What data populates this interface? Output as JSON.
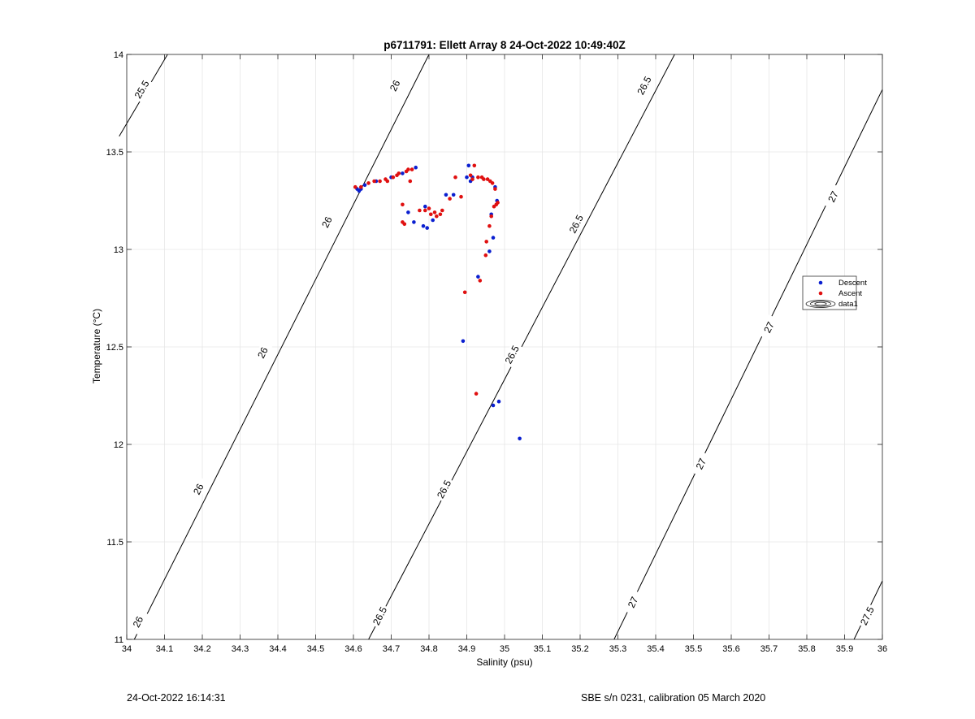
{
  "chart_data": {
    "type": "scatter",
    "title": "p6711791: Ellett Array 8 24-Oct-2022 10:49:40Z",
    "xlabel": "Salinity (psu)",
    "ylabel": "Temperature (°C)",
    "xlim": [
      34,
      36
    ],
    "ylim": [
      11,
      14
    ],
    "xticks": [
      34,
      34.1,
      34.2,
      34.3,
      34.4,
      34.5,
      34.6,
      34.7,
      34.8,
      34.9,
      35,
      35.1,
      35.2,
      35.3,
      35.4,
      35.5,
      35.6,
      35.7,
      35.8,
      35.9,
      36
    ],
    "xtick_labels": [
      "34",
      "34.1",
      "34.2",
      "34.3",
      "34.4",
      "34.5",
      "34.6",
      "34.7",
      "34.8",
      "34.9",
      "35",
      "35.1",
      "35.2",
      "35.3",
      "35.4",
      "35.5",
      "35.6",
      "35.7",
      "35.8",
      "35.9",
      "36"
    ],
    "yticks": [
      11,
      11.5,
      12,
      12.5,
      13,
      13.5,
      14
    ],
    "ytick_labels": [
      "11",
      "11.5",
      "12",
      "12.5",
      "13",
      "13.5",
      "14"
    ],
    "grid": true,
    "legend_position": "right",
    "legend": [
      {
        "label": "Descent",
        "marker": "dot",
        "color": "#0a1fd0"
      },
      {
        "label": "Ascent",
        "marker": "dot",
        "color": "#e01010"
      },
      {
        "label": "data1",
        "marker": "contour",
        "color": "#000000"
      }
    ],
    "contours": [
      {
        "level": 25.5,
        "label": "25.5",
        "points": [
          [
            33.98,
            13.58
          ],
          [
            34.108,
            14.0
          ]
        ],
        "label_positions": [
          [
            34.04,
            13.82
          ]
        ]
      },
      {
        "level": 26,
        "label": "26",
        "points": [
          [
            34.02,
            11.0
          ],
          [
            34.8,
            14.0
          ]
        ],
        "label_positions": [
          [
            34.03,
            11.09
          ],
          [
            34.19,
            11.77
          ],
          [
            34.36,
            12.47
          ],
          [
            34.53,
            13.14
          ],
          [
            34.71,
            13.84
          ]
        ]
      },
      {
        "level": 26.5,
        "label": "26.5",
        "points": [
          [
            34.64,
            11.0
          ],
          [
            35.45,
            14.0
          ]
        ],
        "label_positions": [
          [
            34.67,
            11.12
          ],
          [
            34.84,
            11.77
          ],
          [
            35.02,
            12.46
          ],
          [
            35.19,
            13.13
          ],
          [
            35.37,
            13.84
          ]
        ]
      },
      {
        "level": 27,
        "label": "27",
        "points": [
          [
            35.29,
            11.0
          ],
          [
            36.0,
            13.82
          ]
        ],
        "label_positions": [
          [
            35.34,
            11.19
          ],
          [
            35.52,
            11.9
          ],
          [
            35.7,
            12.6
          ],
          [
            35.87,
            13.27
          ]
        ]
      },
      {
        "level": 27.5,
        "label": "27.5",
        "points": [
          [
            35.925,
            11.0
          ],
          [
            36.0,
            11.3
          ]
        ],
        "label_positions": [
          [
            35.96,
            11.12
          ]
        ]
      }
    ],
    "series": [
      {
        "name": "Descent",
        "color": "#0a1fd0",
        "points": [
          [
            34.61,
            13.31
          ],
          [
            34.615,
            13.3
          ],
          [
            34.62,
            13.31
          ],
          [
            34.63,
            13.33
          ],
          [
            34.66,
            13.35
          ],
          [
            34.7,
            13.37
          ],
          [
            34.73,
            13.39
          ],
          [
            34.745,
            13.19
          ],
          [
            34.76,
            13.14
          ],
          [
            34.765,
            13.42
          ],
          [
            34.785,
            13.12
          ],
          [
            34.79,
            13.22
          ],
          [
            34.795,
            13.11
          ],
          [
            34.81,
            13.15
          ],
          [
            34.845,
            13.28
          ],
          [
            34.865,
            13.28
          ],
          [
            34.89,
            12.53
          ],
          [
            34.9,
            13.37
          ],
          [
            34.905,
            13.43
          ],
          [
            34.91,
            13.35
          ],
          [
            34.915,
            13.37
          ],
          [
            34.93,
            12.86
          ],
          [
            34.96,
            12.99
          ],
          [
            34.965,
            13.18
          ],
          [
            34.97,
            13.06
          ],
          [
            34.97,
            12.2
          ],
          [
            34.975,
            13.32
          ],
          [
            34.98,
            13.25
          ],
          [
            34.985,
            12.22
          ],
          [
            35.04,
            12.03
          ]
        ]
      },
      {
        "name": "Ascent",
        "color": "#e01010",
        "points": [
          [
            34.605,
            13.32
          ],
          [
            34.62,
            13.32
          ],
          [
            34.64,
            13.34
          ],
          [
            34.655,
            13.35
          ],
          [
            34.67,
            13.35
          ],
          [
            34.685,
            13.36
          ],
          [
            34.69,
            13.35
          ],
          [
            34.705,
            13.37
          ],
          [
            34.715,
            13.38
          ],
          [
            34.72,
            13.39
          ],
          [
            34.73,
            13.23
          ],
          [
            34.73,
            13.14
          ],
          [
            34.735,
            13.13
          ],
          [
            34.74,
            13.4
          ],
          [
            34.745,
            13.41
          ],
          [
            34.75,
            13.35
          ],
          [
            34.755,
            13.41
          ],
          [
            34.775,
            13.2
          ],
          [
            34.79,
            13.2
          ],
          [
            34.8,
            13.21
          ],
          [
            34.805,
            13.18
          ],
          [
            34.815,
            13.19
          ],
          [
            34.82,
            13.17
          ],
          [
            34.83,
            13.18
          ],
          [
            34.835,
            13.2
          ],
          [
            34.855,
            13.26
          ],
          [
            34.87,
            13.37
          ],
          [
            34.885,
            13.27
          ],
          [
            34.895,
            12.78
          ],
          [
            34.91,
            13.38
          ],
          [
            34.915,
            13.36
          ],
          [
            34.92,
            13.43
          ],
          [
            34.925,
            12.26
          ],
          [
            34.93,
            13.37
          ],
          [
            34.935,
            12.84
          ],
          [
            34.94,
            13.37
          ],
          [
            34.945,
            13.36
          ],
          [
            34.95,
            12.97
          ],
          [
            34.952,
            13.04
          ],
          [
            34.955,
            13.36
          ],
          [
            34.96,
            13.12
          ],
          [
            34.962,
            13.35
          ],
          [
            34.965,
            13.17
          ],
          [
            34.968,
            13.34
          ],
          [
            34.972,
            13.22
          ],
          [
            34.975,
            13.31
          ],
          [
            34.978,
            13.23
          ],
          [
            34.982,
            13.24
          ]
        ]
      }
    ]
  },
  "footer": {
    "timestamp": "24-Oct-2022 16:14:31",
    "instrument": "SBE s/n 0231, calibration 05 March 2020"
  }
}
